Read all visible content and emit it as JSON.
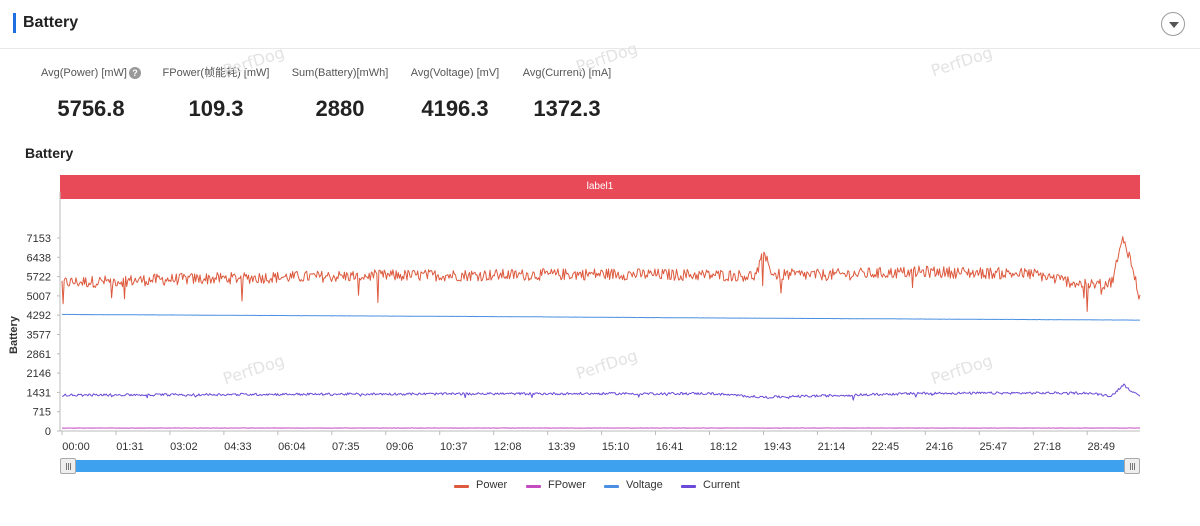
{
  "header": {
    "title": "Battery"
  },
  "metrics": [
    {
      "label": "Avg(Power) [mW]",
      "value": "5756.8",
      "help": "?"
    },
    {
      "label": "FPower(帧能耗) [mW]",
      "value": "109.3"
    },
    {
      "label": "Sum(Battery)[mWh]",
      "value": "2880"
    },
    {
      "label": "Avg(Voltage) [mV]",
      "value": "4196.3"
    },
    {
      "label": "Avg(Current) [mA]",
      "value": "1372.3"
    }
  ],
  "section": {
    "title": "Battery"
  },
  "label_band": {
    "text": "label1"
  },
  "watermark": "PerfDog",
  "colors": {
    "Power": "#dd5a3e",
    "FPower": "#c44bc0",
    "Voltage": "#4a90e2",
    "Current": "#6a4ad6",
    "label_band": "#e94a57",
    "slider": "#3ea1f0"
  },
  "chart_data": {
    "type": "line",
    "title": "",
    "ylabel": "Battery",
    "ylim": [
      0,
      7153
    ],
    "y_ticks": [
      "0",
      "715",
      "1431",
      "2146",
      "2861",
      "3577",
      "4292",
      "5007",
      "5722",
      "6438",
      "7153"
    ],
    "x_ticks": [
      "00:00",
      "01:31",
      "03:02",
      "04:33",
      "06:04",
      "07:35",
      "09:06",
      "10:37",
      "12:08",
      "13:39",
      "15:10",
      "16:41",
      "18:12",
      "19:43",
      "21:14",
      "22:45",
      "24:16",
      "25:47",
      "27:18",
      "28:49"
    ],
    "x_range_seconds": [
      0,
      1818
    ],
    "legend_position": "bottom",
    "series": [
      {
        "name": "Power",
        "x": [
          "00:00",
          "03:02",
          "06:04",
          "09:06",
          "12:08",
          "15:10",
          "18:12",
          "19:30",
          "19:43",
          "20:00",
          "21:14",
          "24:16",
          "27:18",
          "28:49",
          "29:30",
          "29:50",
          "30:00",
          "30:18"
        ],
        "values": [
          5500,
          5620,
          5700,
          5760,
          5780,
          5820,
          5780,
          5750,
          6550,
          5800,
          5780,
          5900,
          5820,
          5400,
          5500,
          7150,
          6500,
          4900
        ]
      },
      {
        "name": "FPower",
        "x": [
          "00:00",
          "30:18"
        ],
        "values": [
          110,
          110
        ]
      },
      {
        "name": "Voltage",
        "x": [
          "00:00",
          "06:04",
          "12:08",
          "18:12",
          "24:16",
          "30:18"
        ],
        "values": [
          4320,
          4280,
          4240,
          4190,
          4150,
          4110
        ]
      },
      {
        "name": "Current",
        "x": [
          "00:00",
          "06:04",
          "12:08",
          "18:12",
          "19:43",
          "24:16",
          "28:49",
          "29:30",
          "29:50",
          "30:18"
        ],
        "values": [
          1330,
          1360,
          1380,
          1390,
          1250,
          1400,
          1410,
          1300,
          1720,
          1250
        ]
      }
    ]
  }
}
